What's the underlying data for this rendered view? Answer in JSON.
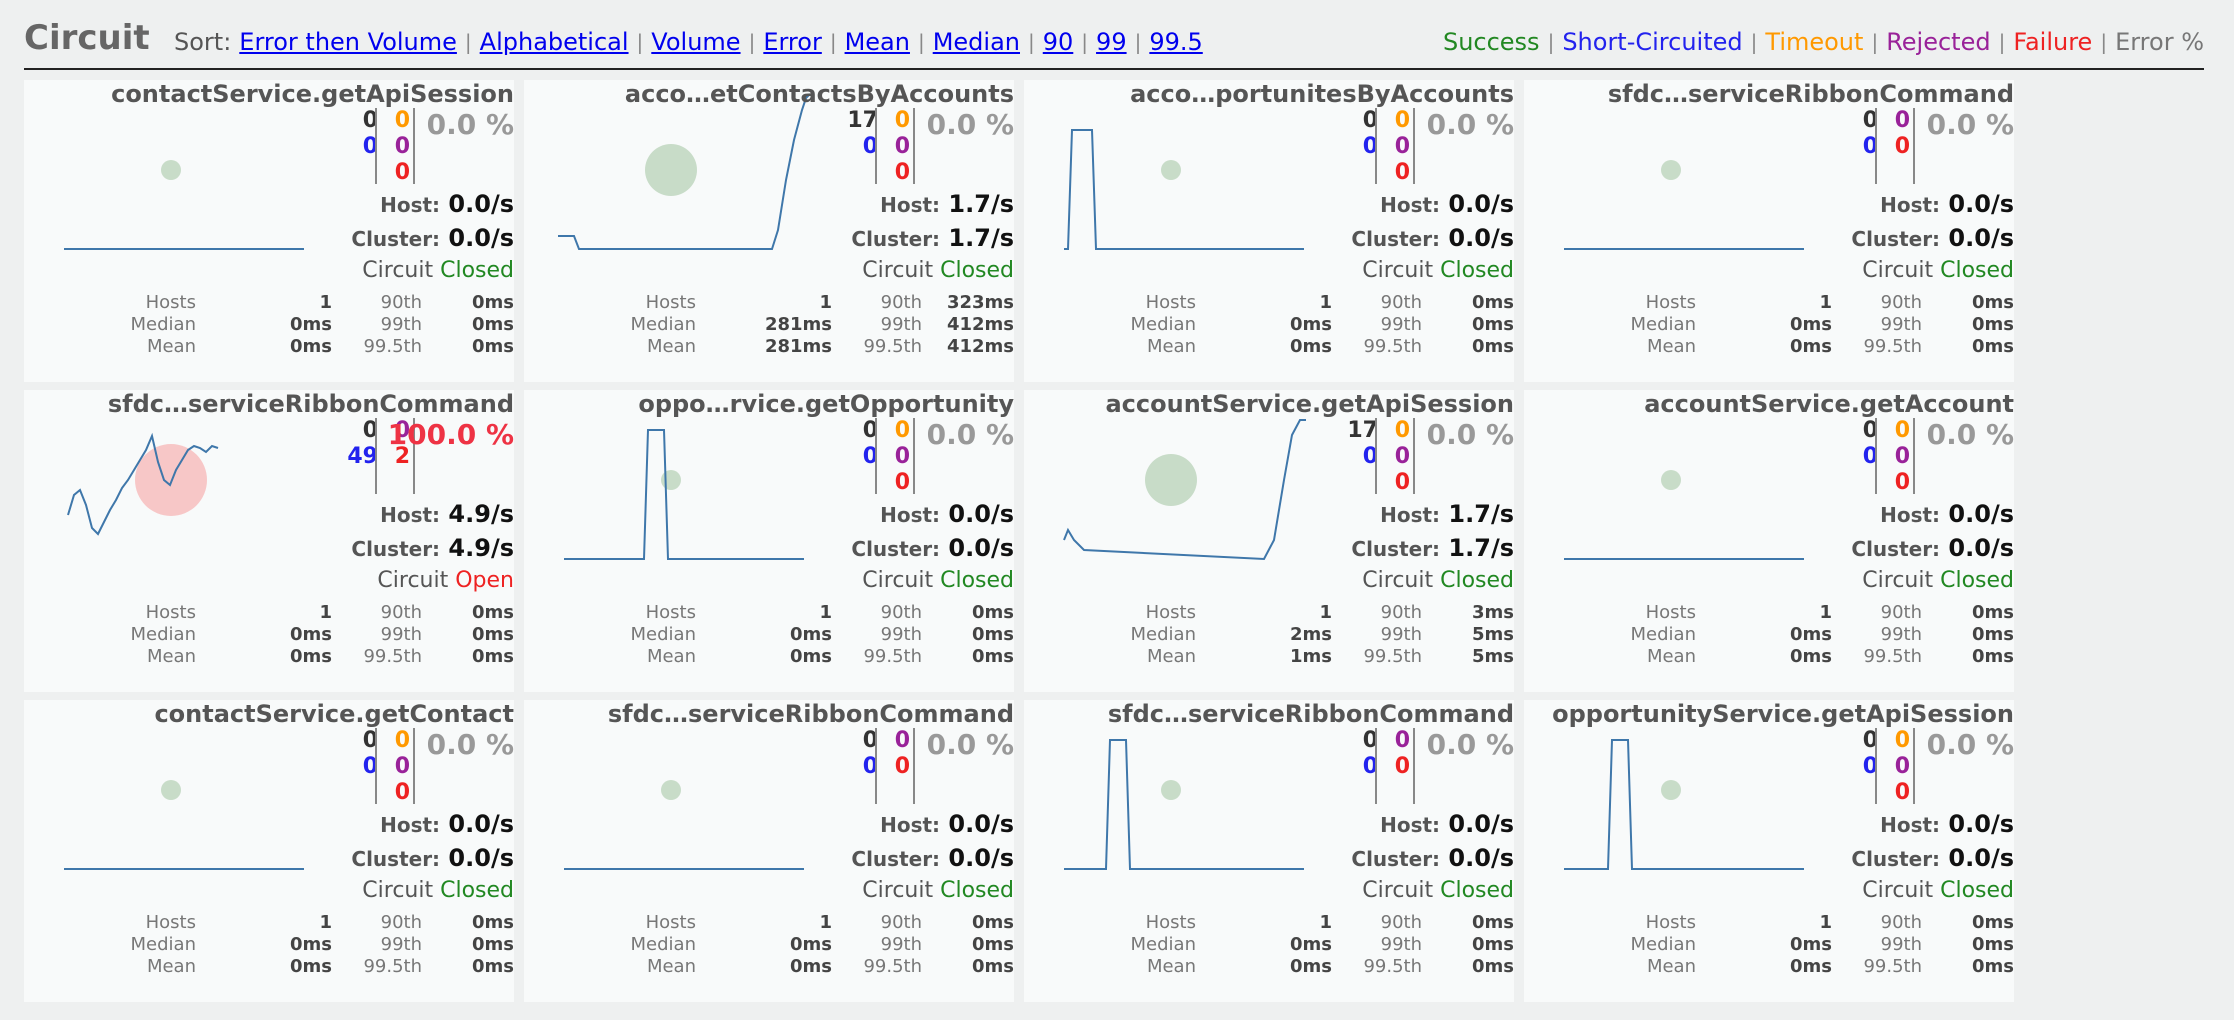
{
  "header": {
    "title": "Circuit",
    "sort_label": "Sort:",
    "sort_options": [
      "Error then Volume",
      "Alphabetical",
      "Volume",
      "Error",
      "Mean",
      "Median",
      "90",
      "99",
      "99.5"
    ],
    "legend": [
      {
        "label": "Success",
        "color": "#228822"
      },
      {
        "label": "Short-Circuited",
        "color": "#2222ee"
      },
      {
        "label": "Timeout",
        "color": "#ff9900"
      },
      {
        "label": "Rejected",
        "color": "#992299"
      },
      {
        "label": "Failure",
        "color": "#ee2222"
      },
      {
        "label": "Error %",
        "color": "#777777"
      }
    ]
  },
  "labels": {
    "host": "Host:",
    "cluster": "Cluster:",
    "circuit": "Circuit",
    "hosts": "Hosts",
    "median": "Median",
    "mean": "Mean",
    "p90": "90th",
    "p99": "99th",
    "p995": "99.5th"
  },
  "circuits": [
    {
      "name": "contactService.getApiSession",
      "success": "0",
      "short": "0",
      "timeout": "0",
      "rejected": "0",
      "failure": "0",
      "error_pct": "0.0 %",
      "host_rate": "0.0/s",
      "cluster_rate": "0.0/s",
      "status": "Closed",
      "hosts": "1",
      "median": "0ms",
      "mean": "0ms",
      "p90": "0ms",
      "p99": "0ms",
      "p995": "0ms"
    },
    {
      "name": "acco…etContactsByAccounts",
      "success": "17",
      "short": "0",
      "timeout": "0",
      "rejected": "0",
      "failure": "0",
      "error_pct": "0.0 %",
      "host_rate": "1.7/s",
      "cluster_rate": "1.7/s",
      "status": "Closed",
      "hosts": "1",
      "median": "281ms",
      "mean": "281ms",
      "p90": "323ms",
      "p99": "412ms",
      "p995": "412ms"
    },
    {
      "name": "acco…portunitesByAccounts",
      "success": "0",
      "short": "0",
      "timeout": "0",
      "rejected": "0",
      "failure": "0",
      "error_pct": "0.0 %",
      "host_rate": "0.0/s",
      "cluster_rate": "0.0/s",
      "status": "Closed",
      "hosts": "1",
      "median": "0ms",
      "mean": "0ms",
      "p90": "0ms",
      "p99": "0ms",
      "p995": "0ms"
    },
    {
      "name": "sfdc…serviceRibbonCommand",
      "success": "0",
      "short": "0",
      "timeout": "",
      "rejected": "0",
      "failure": "0",
      "error_pct": "0.0 %",
      "host_rate": "0.0/s",
      "cluster_rate": "0.0/s",
      "status": "Closed",
      "hosts": "1",
      "median": "0ms",
      "mean": "0ms",
      "p90": "0ms",
      "p99": "0ms",
      "p995": "0ms"
    },
    {
      "name": "sfdc…serviceRibbonCommand",
      "success": "0",
      "short": "49",
      "timeout": "",
      "rejected": "0",
      "failure": "2",
      "error_pct": "100.0 %",
      "host_rate": "4.9/s",
      "cluster_rate": "4.9/s",
      "status": "Open",
      "hosts": "1",
      "median": "0ms",
      "mean": "0ms",
      "p90": "0ms",
      "p99": "0ms",
      "p995": "0ms"
    },
    {
      "name": "oppo…rvice.getOpportunity",
      "success": "0",
      "short": "0",
      "timeout": "0",
      "rejected": "0",
      "failure": "0",
      "error_pct": "0.0 %",
      "host_rate": "0.0/s",
      "cluster_rate": "0.0/s",
      "status": "Closed",
      "hosts": "1",
      "median": "0ms",
      "mean": "0ms",
      "p90": "0ms",
      "p99": "0ms",
      "p995": "0ms"
    },
    {
      "name": "accountService.getApiSession",
      "success": "17",
      "short": "0",
      "timeout": "0",
      "rejected": "0",
      "failure": "0",
      "error_pct": "0.0 %",
      "host_rate": "1.7/s",
      "cluster_rate": "1.7/s",
      "status": "Closed",
      "hosts": "1",
      "median": "2ms",
      "mean": "1ms",
      "p90": "3ms",
      "p99": "5ms",
      "p995": "5ms"
    },
    {
      "name": "accountService.getAccount",
      "success": "0",
      "short": "0",
      "timeout": "0",
      "rejected": "0",
      "failure": "0",
      "error_pct": "0.0 %",
      "host_rate": "0.0/s",
      "cluster_rate": "0.0/s",
      "status": "Closed",
      "hosts": "1",
      "median": "0ms",
      "mean": "0ms",
      "p90": "0ms",
      "p99": "0ms",
      "p995": "0ms"
    },
    {
      "name": "contactService.getContact",
      "success": "0",
      "short": "0",
      "timeout": "0",
      "rejected": "0",
      "failure": "0",
      "error_pct": "0.0 %",
      "host_rate": "0.0/s",
      "cluster_rate": "0.0/s",
      "status": "Closed",
      "hosts": "1",
      "median": "0ms",
      "mean": "0ms",
      "p90": "0ms",
      "p99": "0ms",
      "p995": "0ms"
    },
    {
      "name": "sfdc…serviceRibbonCommand",
      "success": "0",
      "short": "0",
      "timeout": "",
      "rejected": "0",
      "failure": "0",
      "error_pct": "0.0 %",
      "host_rate": "0.0/s",
      "cluster_rate": "0.0/s",
      "status": "Closed",
      "hosts": "1",
      "median": "0ms",
      "mean": "0ms",
      "p90": "0ms",
      "p99": "0ms",
      "p995": "0ms"
    },
    {
      "name": "sfdc…serviceRibbonCommand",
      "success": "0",
      "short": "0",
      "timeout": "",
      "rejected": "0",
      "failure": "0",
      "error_pct": "0.0 %",
      "host_rate": "0.0/s",
      "cluster_rate": "0.0/s",
      "status": "Closed",
      "hosts": "1",
      "median": "0ms",
      "mean": "0ms",
      "p90": "0ms",
      "p99": "0ms",
      "p995": "0ms"
    },
    {
      "name": "opportunityService.getApiSession",
      "success": "0",
      "short": "0",
      "timeout": "0",
      "rejected": "0",
      "failure": "0",
      "error_pct": "0.0 %",
      "host_rate": "0.0/s",
      "cluster_rate": "0.0/s",
      "status": "Closed",
      "hosts": "1",
      "median": "0ms",
      "mean": "0ms",
      "p90": "0ms",
      "p99": "0ms",
      "p995": "0ms"
    }
  ]
}
